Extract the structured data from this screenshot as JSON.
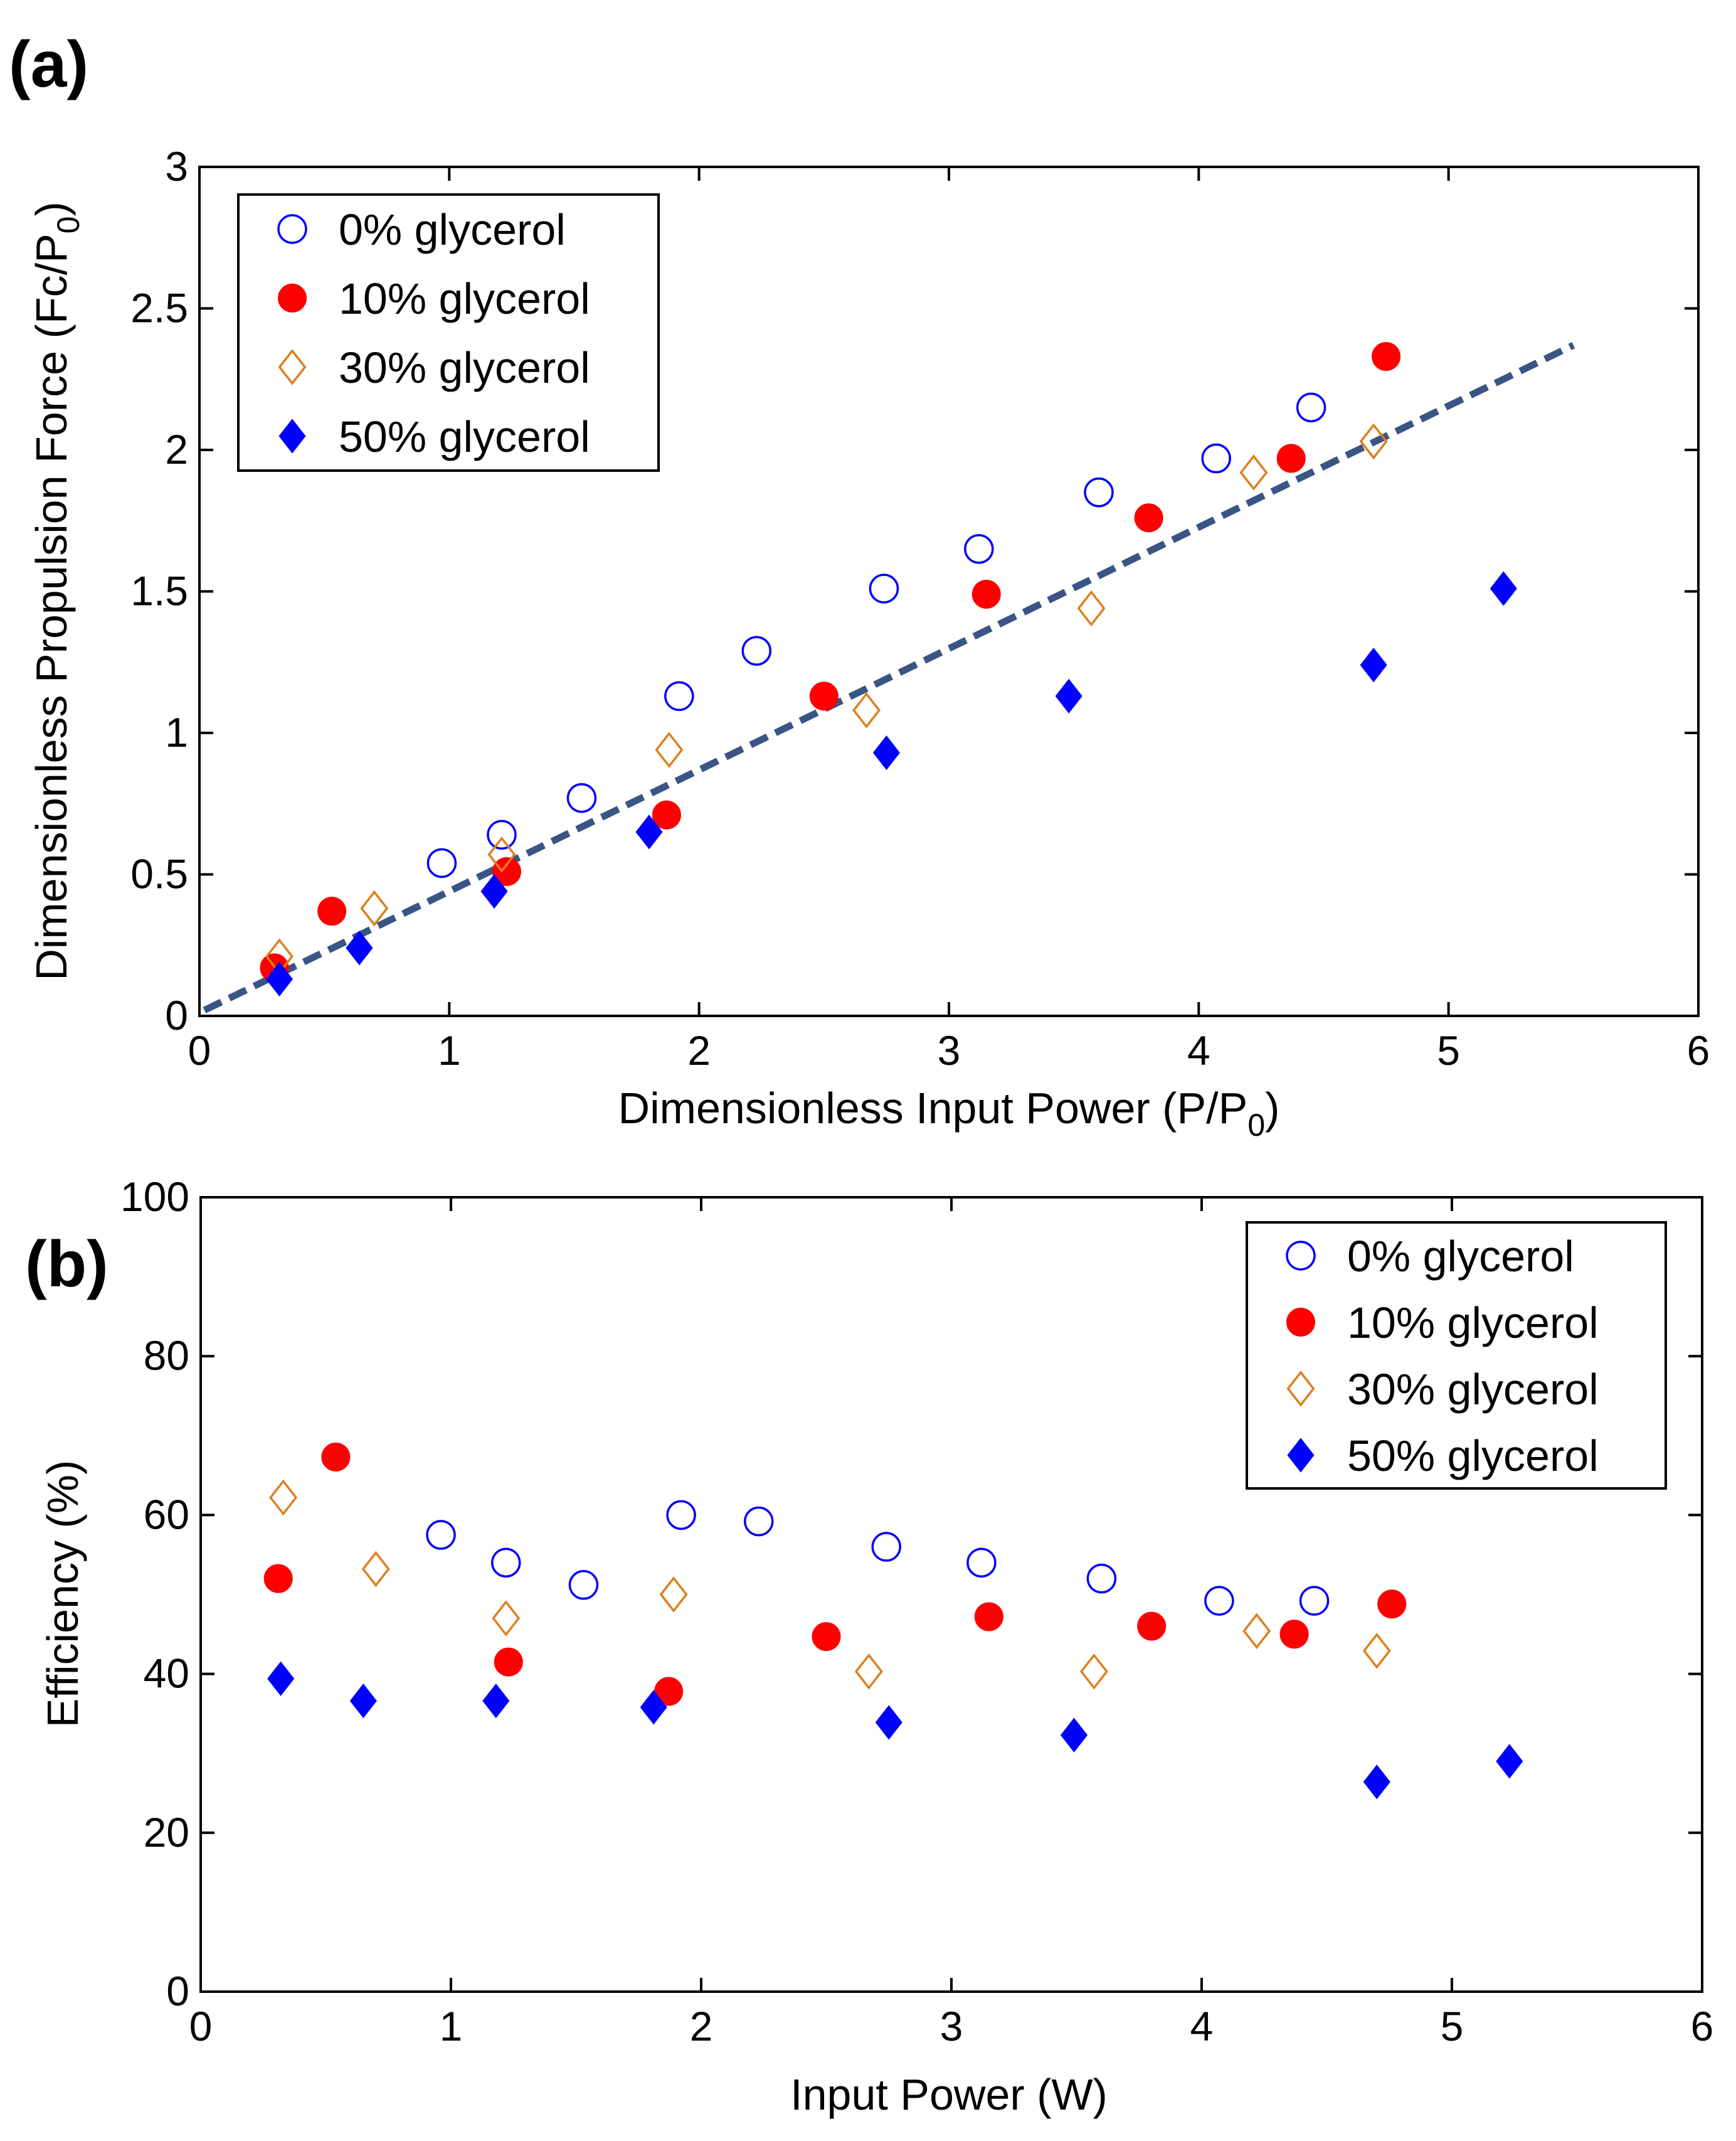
{
  "colors": {
    "open_circle": "#0000FF",
    "filled_circle": "#FF0000",
    "open_diamond": "#DD7F1E",
    "filled_diamond": "#0000FF",
    "fit_line": "#3A5584"
  },
  "chart_data": [
    {
      "panel_label": "(a)",
      "type": "scatter",
      "xlabel": "Dimensionless Input Power (P/P",
      "xlabel_sub": "0",
      "xlabel_tail": ")",
      "ylabel": "Dimensionless Propulsion Force (Fc/P",
      "ylabel_sub": "0",
      "ylabel_tail": ")",
      "xlim": [
        0,
        6
      ],
      "ylim": [
        0,
        3
      ],
      "xticks": [
        0,
        1,
        2,
        3,
        4,
        5,
        6
      ],
      "yticks": [
        0,
        0.5,
        1,
        1.5,
        2,
        2.5,
        3
      ],
      "xtick_labels": [
        "0",
        "1",
        "2",
        "3",
        "4",
        "5",
        "6"
      ],
      "ytick_labels": [
        "0",
        "0.5",
        "1",
        "1.5",
        "2",
        "2.5",
        "3"
      ],
      "legend_position": "top-left",
      "legend": [
        "0% glycerol",
        "10% glycerol",
        "30% glycerol",
        "50% glycerol"
      ],
      "series": [
        {
          "name": "0% glycerol",
          "marker": "open-circle",
          "x": [
            0.97,
            1.21,
            1.53,
            1.92,
            2.23,
            2.74,
            3.12,
            3.6,
            4.07,
            4.45
          ],
          "y": [
            0.54,
            0.64,
            0.77,
            1.13,
            1.29,
            1.51,
            1.65,
            1.85,
            1.97,
            2.15
          ]
        },
        {
          "name": "10% glycerol",
          "marker": "filled-circle",
          "x": [
            0.3,
            0.53,
            1.23,
            1.87,
            2.5,
            3.15,
            3.8,
            4.37,
            4.75
          ],
          "y": [
            0.17,
            0.37,
            0.51,
            0.71,
            1.13,
            1.49,
            1.76,
            1.97,
            2.33
          ]
        },
        {
          "name": "30% glycerol",
          "marker": "open-diamond",
          "x": [
            0.32,
            0.7,
            1.21,
            1.88,
            2.67,
            3.57,
            4.22,
            4.7
          ],
          "y": [
            0.21,
            0.38,
            0.57,
            0.94,
            1.08,
            1.44,
            1.92,
            2.03
          ]
        },
        {
          "name": "50% glycerol",
          "marker": "filled-diamond",
          "x": [
            0.32,
            0.64,
            1.18,
            1.8,
            2.75,
            3.48,
            4.7,
            5.22
          ],
          "y": [
            0.13,
            0.24,
            0.44,
            0.65,
            0.93,
            1.13,
            1.24,
            1.51
          ]
        }
      ],
      "fit_line": {
        "style": "dashed",
        "x": [
          0.02,
          5.5
        ],
        "y": [
          0.02,
          2.37
        ]
      }
    },
    {
      "panel_label": "(b)",
      "type": "scatter",
      "xlabel": "Input Power (W)",
      "ylabel": "Efficiency (%)",
      "xlim": [
        0,
        6
      ],
      "ylim": [
        0,
        100
      ],
      "xticks": [
        0,
        1,
        2,
        3,
        4,
        5,
        6
      ],
      "yticks": [
        0,
        20,
        40,
        60,
        80,
        100
      ],
      "xtick_labels": [
        "0",
        "1",
        "2",
        "3",
        "4",
        "5",
        "6"
      ],
      "ytick_labels": [
        "0",
        "20",
        "40",
        "60",
        "80",
        "100"
      ],
      "legend_position": "top-right",
      "legend": [
        "0% glycerol",
        "10% glycerol",
        "30% glycerol",
        "50% glycerol"
      ],
      "series": [
        {
          "name": "0% glycerol",
          "marker": "open-circle",
          "x": [
            0.96,
            1.22,
            1.53,
            1.92,
            2.23,
            2.74,
            3.12,
            3.6,
            4.07,
            4.45
          ],
          "y": [
            57.5,
            54,
            51.2,
            60,
            59.2,
            56,
            54,
            52,
            49.2,
            49.2
          ]
        },
        {
          "name": "10% glycerol",
          "marker": "filled-circle",
          "x": [
            0.31,
            0.54,
            1.23,
            1.87,
            2.5,
            3.15,
            3.8,
            4.37,
            4.76
          ],
          "y": [
            52,
            67.3,
            41.5,
            37.8,
            44.7,
            47.2,
            46,
            45,
            48.8
          ]
        },
        {
          "name": "30% glycerol",
          "marker": "open-diamond",
          "x": [
            0.33,
            0.7,
            1.22,
            1.89,
            2.67,
            3.57,
            4.22,
            4.7
          ],
          "y": [
            62.2,
            53.2,
            47,
            50,
            40.3,
            40.3,
            45.4,
            42.9
          ]
        },
        {
          "name": "50% glycerol",
          "marker": "filled-diamond",
          "x": [
            0.32,
            0.65,
            1.18,
            1.81,
            2.75,
            3.49,
            4.7,
            5.23
          ],
          "y": [
            39.4,
            36.6,
            36.6,
            35.8,
            33.9,
            32.3,
            26.4,
            29
          ]
        }
      ]
    }
  ]
}
